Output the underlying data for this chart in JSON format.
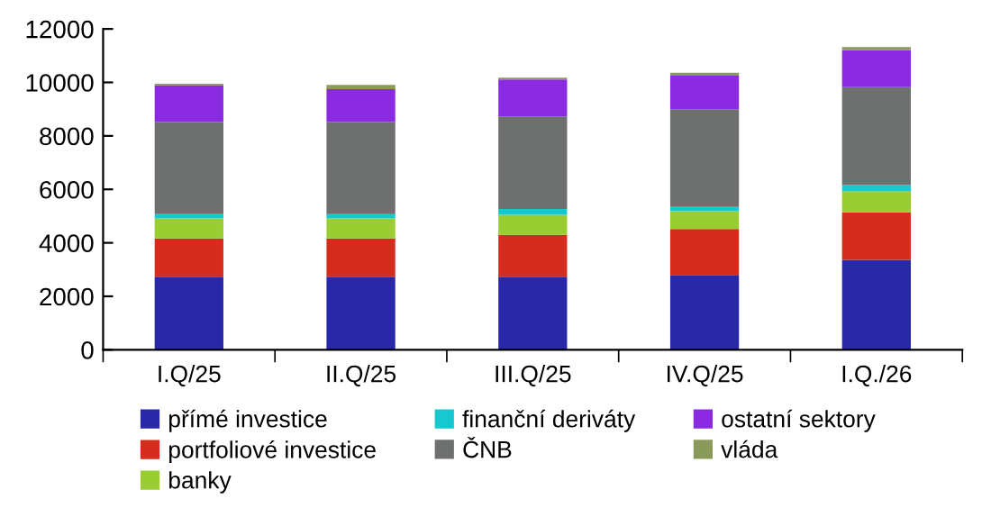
{
  "chart_data": {
    "type": "bar",
    "stacked": true,
    "categories": [
      "I.Q/25",
      "II.Q/25",
      "III.Q/25",
      "IV.Q/25",
      "I.Q./26"
    ],
    "series": [
      {
        "name": "přímé investice",
        "color": "#2828a8",
        "values": [
          2730,
          2730,
          2730,
          2800,
          3360
        ]
      },
      {
        "name": "portfoliové investice",
        "color": "#d62c1e",
        "values": [
          1430,
          1430,
          1570,
          1720,
          1780
        ]
      },
      {
        "name": "banky",
        "color": "#9acd32",
        "values": [
          750,
          750,
          750,
          660,
          790
        ]
      },
      {
        "name": "finanční deriváty",
        "color": "#17c8d0",
        "values": [
          160,
          160,
          220,
          160,
          230
        ]
      },
      {
        "name": "ČNB",
        "color": "#6e7070",
        "values": [
          3450,
          3450,
          3460,
          3660,
          3660
        ]
      },
      {
        "name": "ostatní sektory",
        "color": "#8a2be2",
        "values": [
          1370,
          1230,
          1380,
          1250,
          1380
        ]
      },
      {
        "name": "vláda",
        "color": "#8a9a5b",
        "values": [
          60,
          160,
          70,
          110,
          120
        ]
      }
    ],
    "ylim": [
      0,
      12000
    ],
    "yticks": [
      0,
      2000,
      4000,
      6000,
      8000,
      10000,
      12000
    ],
    "grid": false,
    "legend": "bottom"
  }
}
